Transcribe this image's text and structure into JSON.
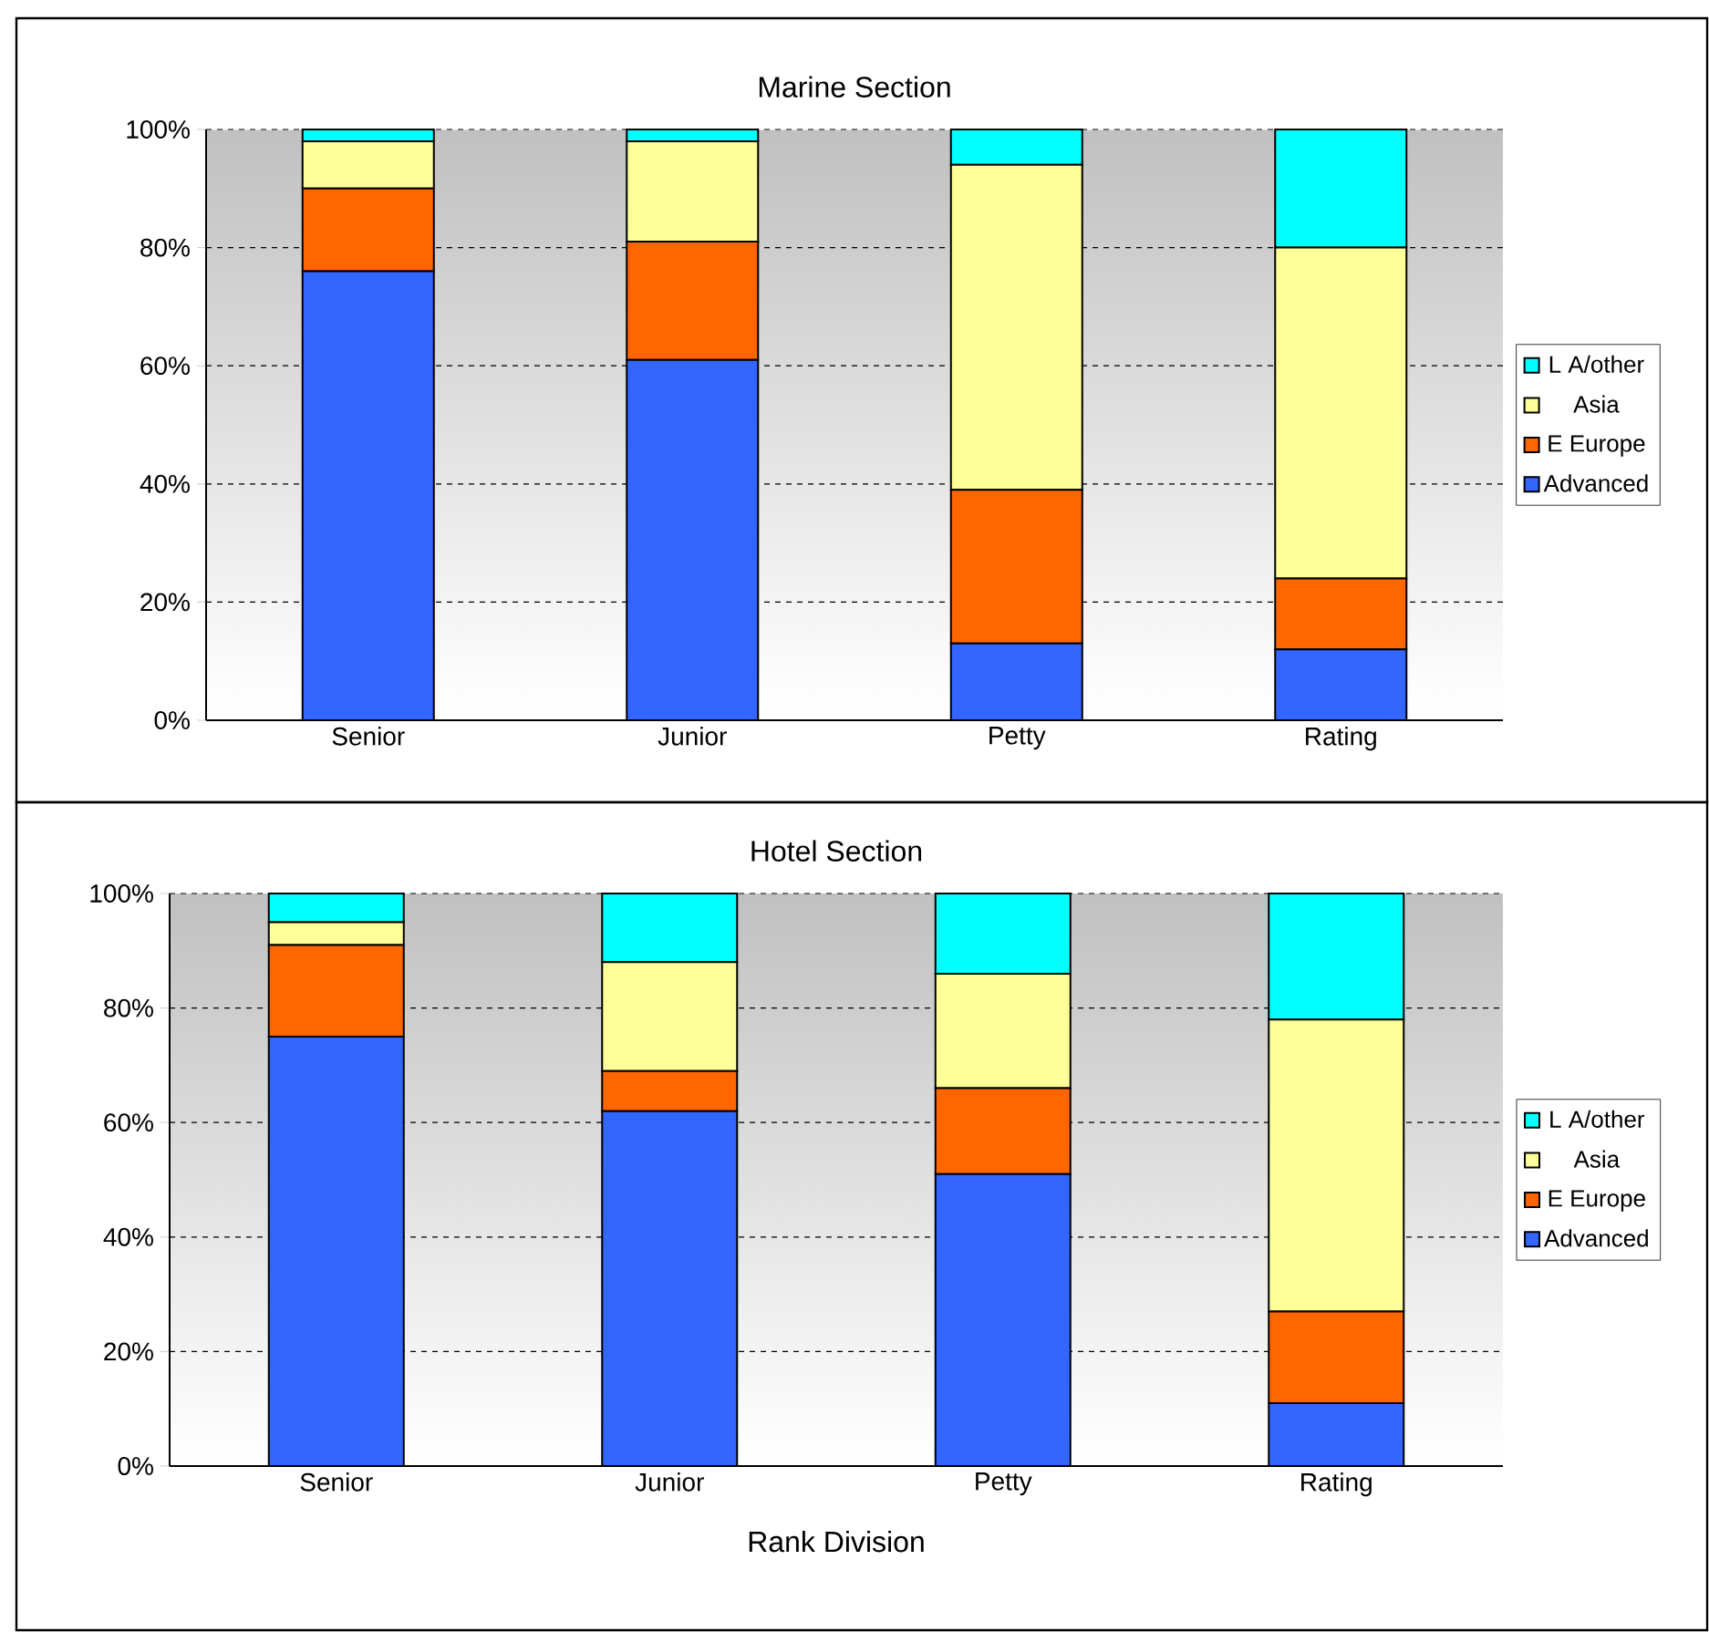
{
  "chart_data": [
    {
      "type": "bar",
      "title": "Marine Section",
      "categories": [
        "Senior",
        "Junior",
        "Petty",
        "Rating"
      ],
      "stacked": true,
      "ylim": [
        0,
        100
      ],
      "yticks": [
        {
          "value": 0,
          "label": "0%"
        },
        {
          "value": 20,
          "label": "20%"
        },
        {
          "value": 40,
          "label": "40%"
        },
        {
          "value": 60,
          "label": "60%"
        },
        {
          "value": 80,
          "label": "80%"
        },
        {
          "value": 100,
          "label": "100%"
        }
      ],
      "grid": "y",
      "legend": "right",
      "series": [
        {
          "name": "Advanced",
          "color": "#3366ff",
          "values": [
            76,
            61,
            13,
            12
          ]
        },
        {
          "name": "E Europe",
          "color": "#ff6600",
          "values": [
            14,
            20,
            26,
            12
          ]
        },
        {
          "name": "Asia",
          "color": "#ffff99",
          "values": [
            8,
            17,
            55,
            56
          ]
        },
        {
          "name": "L A/other",
          "color": "#00ffff",
          "values": [
            2,
            2,
            6,
            20
          ]
        }
      ]
    },
    {
      "type": "bar",
      "title": "Hotel Section",
      "xlabel": "Rank Division",
      "categories": [
        "Senior",
        "Junior",
        "Petty",
        "Rating"
      ],
      "stacked": true,
      "ylim": [
        0,
        100
      ],
      "yticks": [
        {
          "value": 0,
          "label": "0%"
        },
        {
          "value": 20,
          "label": "20%"
        },
        {
          "value": 40,
          "label": "40%"
        },
        {
          "value": 60,
          "label": "60%"
        },
        {
          "value": 80,
          "label": "80%"
        },
        {
          "value": 100,
          "label": "100%"
        }
      ],
      "grid": "y",
      "legend": "right",
      "series": [
        {
          "name": "Advanced",
          "color": "#3366ff",
          "values": [
            75,
            62,
            51,
            11
          ]
        },
        {
          "name": "E Europe",
          "color": "#ff6600",
          "values": [
            16,
            7,
            15,
            16
          ]
        },
        {
          "name": "Asia",
          "color": "#ffff99",
          "values": [
            4,
            19,
            20,
            51
          ]
        },
        {
          "name": "L A/other",
          "color": "#00ffff",
          "values": [
            5,
            12,
            14,
            22
          ]
        }
      ]
    }
  ]
}
